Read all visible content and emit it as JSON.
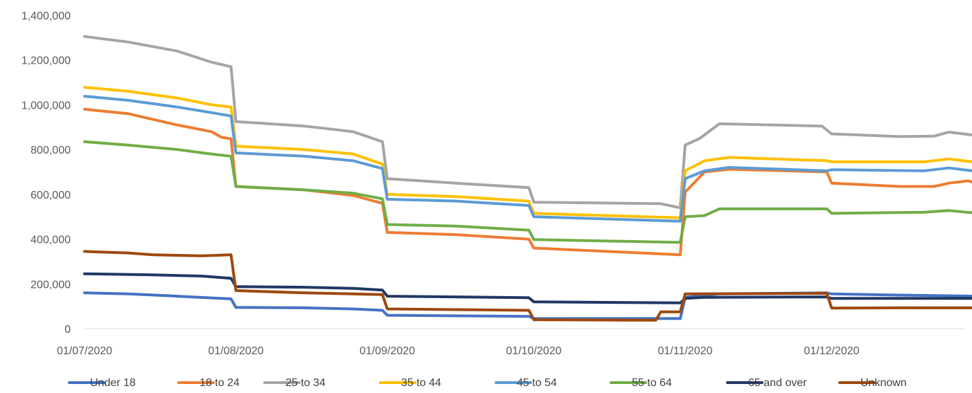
{
  "chart_data": {
    "type": "line",
    "title": "",
    "xlabel": "",
    "ylabel": "",
    "x_range": [
      "2020-07-01",
      "2020-12-31"
    ],
    "x_ticks": [
      "01/07/2020",
      "01/08/2020",
      "01/09/2020",
      "01/10/2020",
      "01/11/2020",
      "01/12/2020"
    ],
    "y_ticks": [
      "0",
      "200,000",
      "400,000",
      "600,000",
      "800,000",
      "1,000,000",
      "1,200,000",
      "1,400,000"
    ],
    "ylim": [
      0,
      1400000
    ],
    "grid": false,
    "legend_position": "bottom",
    "series": [
      {
        "name": "Under 18",
        "color": "#4472C4",
        "points": [
          [
            "2020-07-01",
            160000
          ],
          [
            "2020-07-10",
            155000
          ],
          [
            "2020-07-20",
            145000
          ],
          [
            "2020-07-29",
            135000
          ],
          [
            "2020-07-31",
            133000
          ],
          [
            "2020-08-01",
            95000
          ],
          [
            "2020-08-15",
            93000
          ],
          [
            "2020-08-25",
            88000
          ],
          [
            "2020-08-31",
            82000
          ],
          [
            "2020-09-01",
            60000
          ],
          [
            "2020-09-30",
            55000
          ],
          [
            "2020-10-01",
            45000
          ],
          [
            "2020-10-31",
            45000
          ],
          [
            "2020-11-01",
            140000
          ],
          [
            "2020-11-08",
            155000
          ],
          [
            "2020-11-30",
            160000
          ],
          [
            "2020-12-01",
            155000
          ],
          [
            "2020-12-15",
            150000
          ],
          [
            "2020-12-31",
            145000
          ]
        ]
      },
      {
        "name": "18 to 24",
        "color": "#ED7D31",
        "points": [
          [
            "2020-07-01",
            980000
          ],
          [
            "2020-07-10",
            960000
          ],
          [
            "2020-07-20",
            910000
          ],
          [
            "2020-07-27",
            880000
          ],
          [
            "2020-07-29",
            855000
          ],
          [
            "2020-07-31",
            848000
          ],
          [
            "2020-08-01",
            635000
          ],
          [
            "2020-08-15",
            620000
          ],
          [
            "2020-08-25",
            595000
          ],
          [
            "2020-08-31",
            560000
          ],
          [
            "2020-09-01",
            430000
          ],
          [
            "2020-09-15",
            420000
          ],
          [
            "2020-09-30",
            400000
          ],
          [
            "2020-10-01",
            360000
          ],
          [
            "2020-10-31",
            330000
          ],
          [
            "2020-11-01",
            610000
          ],
          [
            "2020-11-05",
            700000
          ],
          [
            "2020-11-10",
            712000
          ],
          [
            "2020-11-30",
            700000
          ],
          [
            "2020-12-01",
            650000
          ],
          [
            "2020-12-15",
            635000
          ],
          [
            "2020-12-22",
            635000
          ],
          [
            "2020-12-25",
            650000
          ],
          [
            "2020-12-29",
            660000
          ],
          [
            "2020-12-31",
            645000
          ]
        ]
      },
      {
        "name": "25 to 34",
        "color": "#A5A5A5",
        "points": [
          [
            "2020-07-01",
            1305000
          ],
          [
            "2020-07-10",
            1280000
          ],
          [
            "2020-07-20",
            1240000
          ],
          [
            "2020-07-27",
            1190000
          ],
          [
            "2020-07-31",
            1170000
          ],
          [
            "2020-08-01",
            925000
          ],
          [
            "2020-08-15",
            905000
          ],
          [
            "2020-08-25",
            880000
          ],
          [
            "2020-08-31",
            835000
          ],
          [
            "2020-09-01",
            670000
          ],
          [
            "2020-09-15",
            650000
          ],
          [
            "2020-09-30",
            630000
          ],
          [
            "2020-10-01",
            565000
          ],
          [
            "2020-10-27",
            558000
          ],
          [
            "2020-10-31",
            540000
          ],
          [
            "2020-11-01",
            820000
          ],
          [
            "2020-11-04",
            850000
          ],
          [
            "2020-11-08",
            915000
          ],
          [
            "2020-11-29",
            905000
          ],
          [
            "2020-12-01",
            870000
          ],
          [
            "2020-12-15",
            858000
          ],
          [
            "2020-12-22",
            860000
          ],
          [
            "2020-12-25",
            878000
          ],
          [
            "2020-12-31",
            862000
          ]
        ]
      },
      {
        "name": "35 to 44",
        "color": "#FFC000",
        "points": [
          [
            "2020-07-01",
            1078000
          ],
          [
            "2020-07-10",
            1060000
          ],
          [
            "2020-07-20",
            1030000
          ],
          [
            "2020-07-27",
            1000000
          ],
          [
            "2020-07-31",
            990000
          ],
          [
            "2020-08-01",
            815000
          ],
          [
            "2020-08-15",
            800000
          ],
          [
            "2020-08-25",
            780000
          ],
          [
            "2020-08-31",
            735000
          ],
          [
            "2020-09-01",
            600000
          ],
          [
            "2020-09-15",
            590000
          ],
          [
            "2020-09-30",
            570000
          ],
          [
            "2020-10-01",
            515000
          ],
          [
            "2020-10-31",
            495000
          ],
          [
            "2020-11-01",
            705000
          ],
          [
            "2020-11-05",
            750000
          ],
          [
            "2020-11-10",
            765000
          ],
          [
            "2020-11-30",
            750000
          ],
          [
            "2020-12-01",
            745000
          ],
          [
            "2020-12-20",
            745000
          ],
          [
            "2020-12-25",
            758000
          ],
          [
            "2020-12-31",
            742000
          ]
        ]
      },
      {
        "name": "45 to 54",
        "color": "#5B9BD5",
        "points": [
          [
            "2020-07-01",
            1038000
          ],
          [
            "2020-07-10",
            1020000
          ],
          [
            "2020-07-20",
            990000
          ],
          [
            "2020-07-27",
            965000
          ],
          [
            "2020-07-31",
            950000
          ],
          [
            "2020-08-01",
            785000
          ],
          [
            "2020-08-15",
            770000
          ],
          [
            "2020-08-25",
            750000
          ],
          [
            "2020-08-31",
            715000
          ],
          [
            "2020-09-01",
            578000
          ],
          [
            "2020-09-15",
            570000
          ],
          [
            "2020-09-30",
            550000
          ],
          [
            "2020-10-01",
            500000
          ],
          [
            "2020-10-31",
            480000
          ],
          [
            "2020-11-01",
            670000
          ],
          [
            "2020-11-05",
            705000
          ],
          [
            "2020-11-10",
            720000
          ],
          [
            "2020-11-30",
            705000
          ],
          [
            "2020-12-01",
            710000
          ],
          [
            "2020-12-20",
            705000
          ],
          [
            "2020-12-25",
            718000
          ],
          [
            "2020-12-31",
            702000
          ]
        ]
      },
      {
        "name": "55 to 64",
        "color": "#70AD47",
        "points": [
          [
            "2020-07-01",
            835000
          ],
          [
            "2020-07-10",
            820000
          ],
          [
            "2020-07-20",
            800000
          ],
          [
            "2020-07-27",
            780000
          ],
          [
            "2020-07-31",
            770000
          ],
          [
            "2020-08-01",
            635000
          ],
          [
            "2020-08-15",
            620000
          ],
          [
            "2020-08-25",
            605000
          ],
          [
            "2020-08-31",
            580000
          ],
          [
            "2020-09-01",
            465000
          ],
          [
            "2020-09-15",
            458000
          ],
          [
            "2020-09-30",
            440000
          ],
          [
            "2020-10-01",
            398000
          ],
          [
            "2020-10-31",
            385000
          ],
          [
            "2020-11-01",
            500000
          ],
          [
            "2020-11-05",
            505000
          ],
          [
            "2020-11-08",
            535000
          ],
          [
            "2020-11-30",
            535000
          ],
          [
            "2020-12-01",
            515000
          ],
          [
            "2020-12-20",
            520000
          ],
          [
            "2020-12-25",
            528000
          ],
          [
            "2020-12-31",
            515000
          ]
        ]
      },
      {
        "name": "65 and over",
        "color": "#203864",
        "points": [
          [
            "2020-07-01",
            245000
          ],
          [
            "2020-07-15",
            240000
          ],
          [
            "2020-07-25",
            235000
          ],
          [
            "2020-07-31",
            225000
          ],
          [
            "2020-08-01",
            188000
          ],
          [
            "2020-08-15",
            185000
          ],
          [
            "2020-08-25",
            180000
          ],
          [
            "2020-08-31",
            172000
          ],
          [
            "2020-09-01",
            145000
          ],
          [
            "2020-09-30",
            138000
          ],
          [
            "2020-10-01",
            120000
          ],
          [
            "2020-10-31",
            115000
          ],
          [
            "2020-11-01",
            135000
          ],
          [
            "2020-11-05",
            140000
          ],
          [
            "2020-11-30",
            142000
          ],
          [
            "2020-12-01",
            135000
          ],
          [
            "2020-12-31",
            135000
          ]
        ]
      },
      {
        "name": "Unknown",
        "color": "#9E480E",
        "points": [
          [
            "2020-07-01",
            345000
          ],
          [
            "2020-07-10",
            338000
          ],
          [
            "2020-07-15",
            330000
          ],
          [
            "2020-07-25",
            325000
          ],
          [
            "2020-07-31",
            330000
          ],
          [
            "2020-08-01",
            170000
          ],
          [
            "2020-08-15",
            160000
          ],
          [
            "2020-08-31",
            152000
          ],
          [
            "2020-09-01",
            88000
          ],
          [
            "2020-09-30",
            82000
          ],
          [
            "2020-10-01",
            40000
          ],
          [
            "2020-10-20",
            38000
          ],
          [
            "2020-10-26",
            38000
          ],
          [
            "2020-10-27",
            75000
          ],
          [
            "2020-10-31",
            75000
          ],
          [
            "2020-11-01",
            155000
          ],
          [
            "2020-11-30",
            158000
          ],
          [
            "2020-12-01",
            92000
          ],
          [
            "2020-12-15",
            93000
          ],
          [
            "2020-12-31",
            93000
          ]
        ]
      }
    ]
  }
}
